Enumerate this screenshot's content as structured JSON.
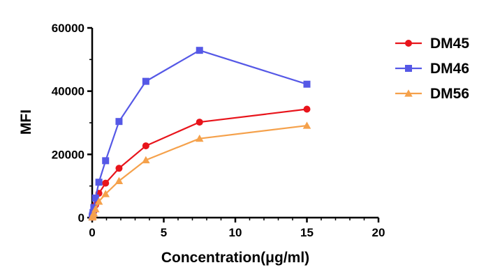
{
  "chart_data": {
    "type": "line",
    "title": "",
    "xlabel": "Concentration(μg/ml)",
    "ylabel": "MFI",
    "xlim": [
      0,
      20
    ],
    "ylim": [
      0,
      60000
    ],
    "x_ticks": [
      0,
      5,
      10,
      15,
      20
    ],
    "y_ticks": [
      0,
      20000,
      40000,
      60000
    ],
    "grid": false,
    "legend_position": "right",
    "series": [
      {
        "name": "DM45",
        "color": "#e8141b",
        "marker": "circle",
        "x": [
          0.0073,
          0.0146,
          0.029,
          0.058,
          0.117,
          0.234,
          0.469,
          0.9375,
          1.875,
          3.75,
          7.5,
          15
        ],
        "y": [
          150,
          300,
          600,
          1100,
          2000,
          4000,
          7700,
          10900,
          15600,
          22700,
          30200,
          34300
        ]
      },
      {
        "name": "DM46",
        "color": "#5558e6",
        "marker": "square",
        "x": [
          0.0073,
          0.0146,
          0.029,
          0.058,
          0.117,
          0.234,
          0.469,
          0.9375,
          1.875,
          3.75,
          7.5,
          15
        ],
        "y": [
          200,
          400,
          800,
          1600,
          3200,
          6200,
          11200,
          18000,
          30400,
          43100,
          52900,
          42200
        ]
      },
      {
        "name": "DM56",
        "color": "#f5a14b",
        "marker": "triangle",
        "x": [
          0.0073,
          0.0146,
          0.029,
          0.058,
          0.117,
          0.234,
          0.469,
          0.9375,
          1.875,
          3.75,
          7.5,
          15
        ],
        "y": [
          100,
          200,
          400,
          700,
          1400,
          2700,
          5100,
          7500,
          11600,
          18200,
          25000,
          29100
        ]
      }
    ]
  }
}
